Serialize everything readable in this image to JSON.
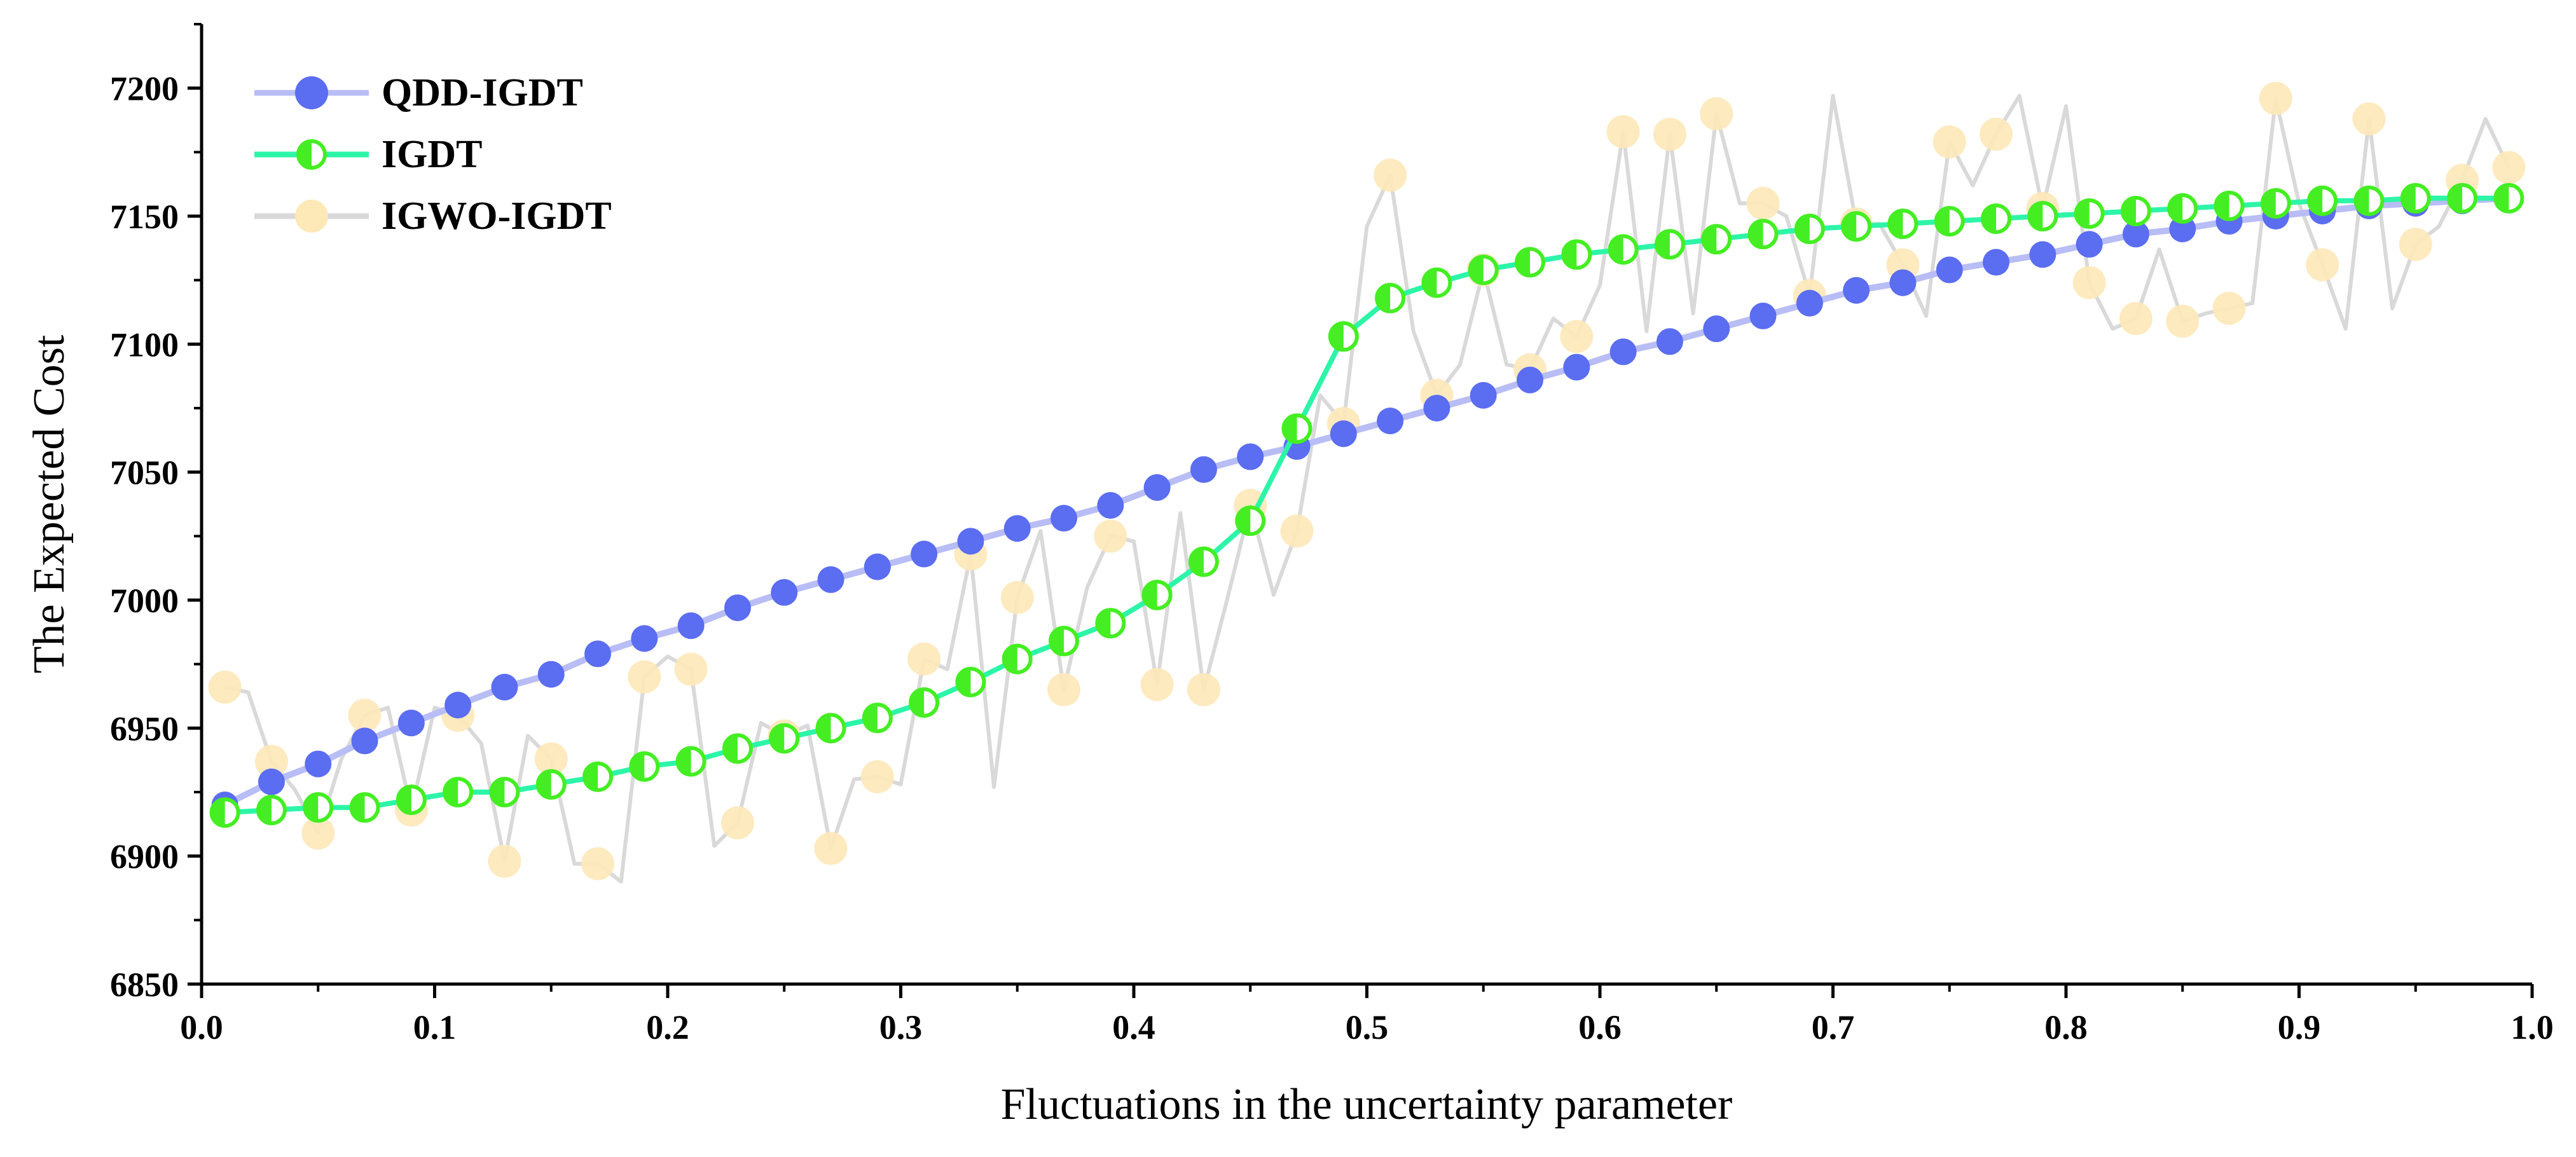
{
  "chart_data": {
    "type": "line",
    "title": "",
    "xlabel": "Fluctuations in the uncertainty parameter",
    "ylabel": "The Expected Cost",
    "xlim": [
      0.0,
      1.0
    ],
    "ylim": [
      6850,
      7225
    ],
    "x_ticks": [
      "0.0",
      "0.1",
      "0.2",
      "0.3",
      "0.4",
      "0.5",
      "0.6",
      "0.7",
      "0.8",
      "0.9",
      "1.0"
    ],
    "y_ticks": [
      "6850",
      "6900",
      "6950",
      "7000",
      "7050",
      "7100",
      "7150",
      "7200"
    ],
    "legend_position": "top-left",
    "colors": {
      "qdd_line": "#b8bdf5",
      "qdd_marker": "#5b6df0",
      "igdt_line": "#2df5a8",
      "igdt_fill": "#44ee22",
      "igwo_line": "#d9d9d9",
      "igwo_marker": "#fde8b8"
    },
    "series": [
      {
        "name": "QDD-IGDT",
        "x": [
          0.01,
          0.03,
          0.05,
          0.07,
          0.09,
          0.11,
          0.13,
          0.15,
          0.17,
          0.19,
          0.21,
          0.23,
          0.25,
          0.27,
          0.29,
          0.31,
          0.33,
          0.35,
          0.37,
          0.39,
          0.41,
          0.43,
          0.45,
          0.47,
          0.49,
          0.51,
          0.53,
          0.55,
          0.57,
          0.59,
          0.61,
          0.63,
          0.65,
          0.67,
          0.69,
          0.71,
          0.73,
          0.75,
          0.77,
          0.79,
          0.81,
          0.83,
          0.85,
          0.87,
          0.89,
          0.91,
          0.93,
          0.95,
          0.97,
          0.99
        ],
        "y": [
          6920,
          6929,
          6936,
          6945,
          6952,
          6959,
          6966,
          6971,
          6979,
          6985,
          6990,
          6997,
          7003,
          7008,
          7013,
          7018,
          7023,
          7028,
          7032,
          7037,
          7044,
          7051,
          7056,
          7060,
          7065,
          7070,
          7075,
          7080,
          7086,
          7091,
          7097,
          7101,
          7106,
          7111,
          7116,
          7121,
          7124,
          7129,
          7132,
          7135,
          7139,
          7143,
          7145,
          7148,
          7150,
          7152,
          7154,
          7155,
          7156,
          7157
        ]
      },
      {
        "name": "IGDT",
        "x": [
          0.01,
          0.03,
          0.05,
          0.07,
          0.09,
          0.11,
          0.13,
          0.15,
          0.17,
          0.19,
          0.21,
          0.23,
          0.25,
          0.27,
          0.29,
          0.31,
          0.33,
          0.35,
          0.37,
          0.39,
          0.41,
          0.43,
          0.45,
          0.47,
          0.49,
          0.51,
          0.53,
          0.55,
          0.57,
          0.59,
          0.61,
          0.63,
          0.65,
          0.67,
          0.69,
          0.71,
          0.73,
          0.75,
          0.77,
          0.79,
          0.81,
          0.83,
          0.85,
          0.87,
          0.89,
          0.91,
          0.93,
          0.95,
          0.97,
          0.99
        ],
        "y": [
          6917,
          6918,
          6919,
          6919,
          6922,
          6925,
          6925,
          6928,
          6931,
          6935,
          6937,
          6942,
          6946,
          6950,
          6954,
          6960,
          6968,
          6977,
          6984,
          6991,
          7002,
          7015,
          7031,
          7067,
          7103,
          7118,
          7124,
          7129,
          7132,
          7135,
          7137,
          7139,
          7141,
          7143,
          7145,
          7146,
          7147,
          7148,
          7149,
          7150,
          7151,
          7152,
          7153,
          7154,
          7155,
          7156,
          7156,
          7157,
          7157,
          7157
        ]
      },
      {
        "name": "IGWO-IGDT",
        "x": [
          0.01,
          0.02,
          0.03,
          0.04,
          0.05,
          0.06,
          0.07,
          0.08,
          0.09,
          0.1,
          0.11,
          0.12,
          0.13,
          0.14,
          0.15,
          0.16,
          0.17,
          0.18,
          0.19,
          0.2,
          0.21,
          0.22,
          0.23,
          0.24,
          0.25,
          0.26,
          0.27,
          0.28,
          0.29,
          0.3,
          0.31,
          0.32,
          0.33,
          0.34,
          0.35,
          0.36,
          0.37,
          0.38,
          0.39,
          0.4,
          0.41,
          0.42,
          0.43,
          0.44,
          0.45,
          0.46,
          0.47,
          0.48,
          0.49,
          0.5,
          0.51,
          0.52,
          0.53,
          0.54,
          0.55,
          0.56,
          0.57,
          0.58,
          0.59,
          0.6,
          0.61,
          0.62,
          0.63,
          0.64,
          0.65,
          0.66,
          0.67,
          0.68,
          0.69,
          0.7,
          0.71,
          0.72,
          0.73,
          0.74,
          0.75,
          0.76,
          0.77,
          0.78,
          0.79,
          0.8,
          0.81,
          0.82,
          0.83,
          0.84,
          0.85,
          0.86,
          0.87,
          0.88,
          0.89,
          0.9,
          0.91,
          0.92,
          0.93,
          0.94,
          0.95,
          0.96,
          0.97,
          0.98,
          0.99
        ],
        "y": [
          6966,
          6964,
          6937,
          6926,
          6909,
          6938,
          6955,
          6958,
          6918,
          6958,
          6955,
          6944,
          6898,
          6947,
          6938,
          6897,
          6897,
          6890,
          6970,
          6978,
          6973,
          6904,
          6913,
          6952,
          6947,
          6951,
          6903,
          6930,
          6931,
          6928,
          6977,
          6973,
          7018,
          6927,
          7001,
          7027,
          6965,
          7005,
          7025,
          7023,
          6967,
          7034,
          6965,
          7000,
          7037,
          7002,
          7027,
          7080,
          7069,
          7146,
          7166,
          7105,
          7080,
          7092,
          7129,
          7092,
          7090,
          7110,
          7103,
          7123,
          7183,
          7105,
          7182,
          7112,
          7190,
          7155,
          7155,
          7150,
          7119,
          7197,
          7147,
          7147,
          7131,
          7111,
          7179,
          7162,
          7182,
          7197,
          7153,
          7193,
          7124,
          7106,
          7110,
          7137,
          7109,
          7112,
          7114,
          7116,
          7196,
          7155,
          7131,
          7106,
          7188,
          7114,
          7139,
          7146,
          7164,
          7188,
          7169
        ]
      }
    ],
    "igwo_marker_points": {
      "x": [
        0.01,
        0.03,
        0.05,
        0.07,
        0.09,
        0.11,
        0.13,
        0.15,
        0.17,
        0.19,
        0.21,
        0.23,
        0.25,
        0.27,
        0.29,
        0.31,
        0.33,
        0.35,
        0.37,
        0.39,
        0.41,
        0.43,
        0.45,
        0.47,
        0.49,
        0.51,
        0.53,
        0.55,
        0.57,
        0.59,
        0.61,
        0.63,
        0.65,
        0.67,
        0.69,
        0.71,
        0.73,
        0.75,
        0.77,
        0.79,
        0.81,
        0.83,
        0.85,
        0.87,
        0.89,
        0.91,
        0.93,
        0.95,
        0.97,
        0.99
      ],
      "y": [
        6966,
        6937,
        6909,
        6955,
        6918,
        6955,
        6898,
        6938,
        6897,
        6970,
        6973,
        6913,
        6947,
        6903,
        6931,
        6977,
        7018,
        7001,
        6965,
        7025,
        6967,
        6965,
        7037,
        7027,
        7069,
        7166,
        7080,
        7129,
        7090,
        7103,
        7183,
        7182,
        7190,
        7155,
        7119,
        7147,
        7131,
        7179,
        7182,
        7153,
        7124,
        7110,
        7109,
        7114,
        7196,
        7131,
        7188,
        7139,
        7164,
        7169
      ]
    }
  }
}
